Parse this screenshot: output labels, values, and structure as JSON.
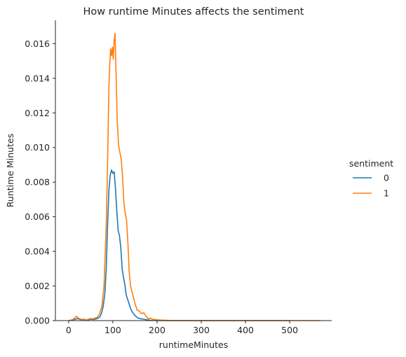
{
  "chart_data": {
    "type": "line",
    "title": "How runtime Minutes affects the sentiment",
    "xlabel": "runtimeMinutes",
    "ylabel": "Runtime Minutes",
    "xlim": [
      -30,
      595
    ],
    "ylim": [
      0,
      0.01735
    ],
    "x_ticks": [
      0,
      100,
      200,
      300,
      400,
      500
    ],
    "x_tick_labels": [
      "0",
      "100",
      "200",
      "300",
      "400",
      "500"
    ],
    "y_ticks": [
      0,
      0.002,
      0.004,
      0.006,
      0.008,
      0.01,
      0.012,
      0.014,
      0.016
    ],
    "y_tick_labels": [
      "0.000",
      "0.002",
      "0.004",
      "0.006",
      "0.008",
      "0.010",
      "0.012",
      "0.014",
      "0.016"
    ],
    "grid": false,
    "legend": {
      "title": "sentiment",
      "placement": "right-outside"
    },
    "series": [
      {
        "name": "0",
        "color": "#1f77b4",
        "x": [
          0,
          10,
          15,
          20,
          25,
          30,
          35,
          40,
          45,
          50,
          55,
          60,
          65,
          70,
          74,
          78,
          82,
          85,
          88,
          91,
          94,
          97,
          100,
          103,
          106,
          109,
          112,
          115,
          118,
          121,
          124,
          127,
          130,
          135,
          140,
          145,
          150,
          155,
          160,
          165,
          170,
          175,
          180,
          185,
          190,
          200,
          210,
          220,
          250,
          300,
          350,
          400,
          450,
          500
        ],
        "y": [
          0.0,
          3e-05,
          8e-05,
          0.00012,
          7e-05,
          5e-05,
          8e-05,
          4e-05,
          5e-05,
          8e-05,
          6e-05,
          8e-05,
          0.00012,
          0.0002,
          0.0004,
          0.0008,
          0.0016,
          0.003,
          0.0055,
          0.0075,
          0.0084,
          0.0087,
          0.0085,
          0.0086,
          0.0076,
          0.0063,
          0.0052,
          0.0049,
          0.0042,
          0.003,
          0.0025,
          0.0021,
          0.0015,
          0.0011,
          0.0007,
          0.00045,
          0.0003,
          0.00018,
          0.00012,
          0.0001,
          8e-05,
          5e-05,
          4e-05,
          2e-05,
          1e-05,
          0.0,
          0.0,
          0.0,
          0.0,
          0.0,
          0.0,
          0.0,
          0.0,
          0.0
        ]
      },
      {
        "name": "1",
        "color": "#ff7f0e",
        "x": [
          0,
          8,
          12,
          15,
          18,
          22,
          25,
          30,
          35,
          40,
          45,
          50,
          55,
          60,
          65,
          70,
          75,
          80,
          85,
          88,
          91,
          93,
          95,
          97,
          99,
          101,
          103,
          105,
          107,
          110,
          113,
          116,
          119,
          122,
          125,
          128,
          131,
          134,
          137,
          140,
          145,
          150,
          155,
          160,
          165,
          170,
          175,
          180,
          185,
          190,
          200,
          210,
          220,
          240,
          260,
          300,
          350,
          400,
          450,
          500,
          520,
          550,
          570
        ],
        "y": [
          0.0,
          5e-05,
          0.0001,
          0.0002,
          0.00025,
          0.00015,
          0.0001,
          8e-05,
          5e-05,
          5e-05,
          8e-05,
          0.00012,
          0.0001,
          0.00015,
          0.0002,
          0.0004,
          0.0008,
          0.002,
          0.0055,
          0.009,
          0.0135,
          0.0148,
          0.0157,
          0.0153,
          0.0158,
          0.0151,
          0.0162,
          0.0166,
          0.0145,
          0.0115,
          0.0101,
          0.0097,
          0.0093,
          0.0083,
          0.0068,
          0.0062,
          0.0058,
          0.0045,
          0.0028,
          0.002,
          0.0015,
          0.001,
          0.0006,
          0.00055,
          0.0004,
          0.00045,
          0.00025,
          0.0001,
          0.00015,
          8e-05,
          5e-05,
          3e-05,
          2e-05,
          0.0,
          0.0,
          0.0,
          0.0,
          0.0,
          0.0,
          0.0,
          0.0,
          0.0,
          0.0
        ]
      }
    ]
  }
}
